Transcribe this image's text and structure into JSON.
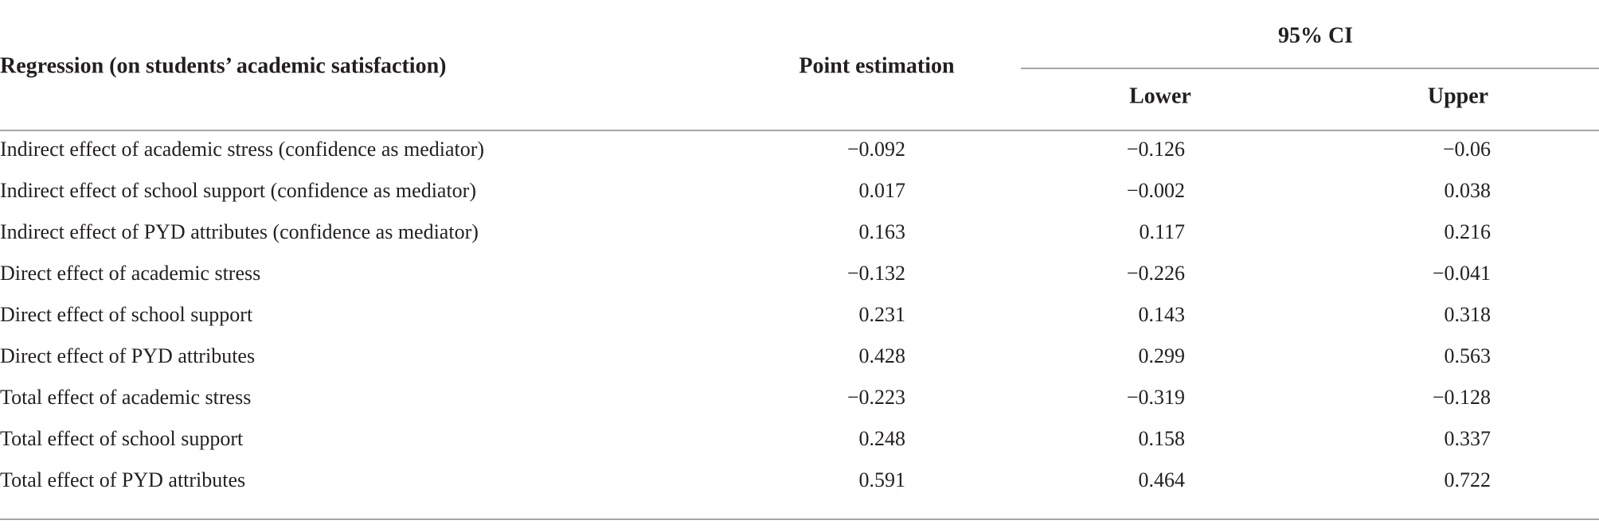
{
  "table": {
    "header": {
      "label": "Regression (on students’ academic satisfaction)",
      "point": "Point estimation",
      "ci": "95% CI",
      "lower": "Lower",
      "upper": "Upper"
    },
    "rows": [
      [
        "Indirect effect of academic stress (confidence as mediator)",
        "−0.092",
        "−0.126",
        "−0.06"
      ],
      [
        "Indirect effect of school support (confidence as mediator)",
        "0.017",
        "−0.002",
        "0.038"
      ],
      [
        "Indirect effect of PYD attributes (confidence as mediator)",
        "0.163",
        "0.117",
        "0.216"
      ],
      [
        "Direct effect of academic stress",
        "−0.132",
        "−0.226",
        "−0.041"
      ],
      [
        "Direct effect of school support",
        "0.231",
        "0.143",
        "0.318"
      ],
      [
        "Direct effect of PYD attributes",
        "0.428",
        "0.299",
        "0.563"
      ],
      [
        "Total effect of academic stress",
        "−0.223",
        "−0.319",
        "−0.128"
      ],
      [
        "Total effect of school support",
        "0.248",
        "0.158",
        "0.337"
      ],
      [
        "Total effect of PYD attributes",
        "0.591",
        "0.464",
        "0.722"
      ]
    ]
  }
}
